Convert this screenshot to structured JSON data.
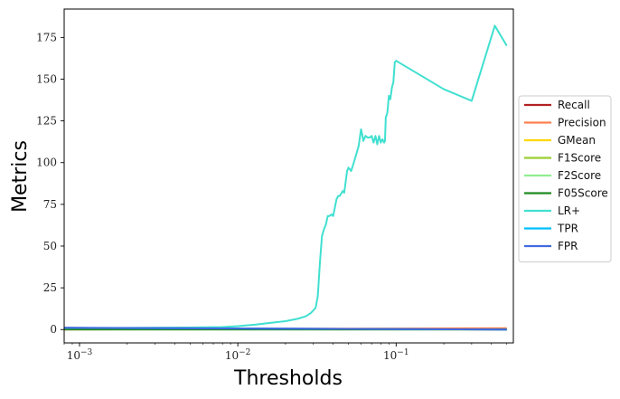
{
  "chart_data": {
    "type": "line",
    "xlabel": "Thresholds",
    "ylabel": "Metrics",
    "xscale": "log",
    "xlim": [
      0.0008,
      0.55
    ],
    "ylim": [
      -8,
      192
    ],
    "grid": false,
    "legend_position": "right-outside",
    "x_ticks": [
      {
        "value": 0.001,
        "base": "10",
        "exp": "−3"
      },
      {
        "value": 0.01,
        "base": "10",
        "exp": "−2"
      },
      {
        "value": 0.1,
        "base": "10",
        "exp": "−1"
      }
    ],
    "y_ticks": [
      0,
      25,
      50,
      75,
      100,
      125,
      150,
      175
    ],
    "series": [
      {
        "name": "Recall",
        "color": "#b22222",
        "x": [
          0.0008,
          0.5
        ],
        "y": [
          0.99,
          0.02
        ]
      },
      {
        "name": "Precision",
        "color": "#ff7f50",
        "x": [
          0.0008,
          0.5
        ],
        "y": [
          0.02,
          0.8
        ]
      },
      {
        "name": "GMean",
        "color": "#ffd700",
        "x": [
          0.0008,
          0.5
        ],
        "y": [
          0.1,
          0.1
        ]
      },
      {
        "name": "F1Score",
        "color": "#9acd32",
        "x": [
          0.0008,
          0.5
        ],
        "y": [
          0.05,
          0.05
        ]
      },
      {
        "name": "F2Score",
        "color": "#90ee90",
        "x": [
          0.0008,
          0.5
        ],
        "y": [
          0.1,
          0.05
        ]
      },
      {
        "name": "F05Score",
        "color": "#228b22",
        "x": [
          0.0008,
          0.5
        ],
        "y": [
          0.03,
          0.05
        ]
      },
      {
        "name": "LR+",
        "color": "#40e0d0",
        "x": [
          0.0008,
          0.002,
          0.005,
          0.008,
          0.01,
          0.013,
          0.016,
          0.02,
          0.024,
          0.027,
          0.029,
          0.031,
          0.032,
          0.033,
          0.034,
          0.035,
          0.036,
          0.037,
          0.038,
          0.039,
          0.04,
          0.042,
          0.043,
          0.044,
          0.046,
          0.047,
          0.049,
          0.05,
          0.052,
          0.054,
          0.056,
          0.058,
          0.06,
          0.061,
          0.062,
          0.064,
          0.066,
          0.068,
          0.07,
          0.072,
          0.074,
          0.076,
          0.078,
          0.08,
          0.082,
          0.084,
          0.085,
          0.086,
          0.088,
          0.09,
          0.092,
          0.094,
          0.096,
          0.098,
          0.1,
          0.2,
          0.3,
          0.42,
          0.5
        ],
        "y": [
          1,
          1,
          1.2,
          1.5,
          2,
          3,
          4,
          5,
          6.5,
          8,
          10,
          13,
          20,
          40,
          56,
          60,
          63,
          68,
          68,
          69,
          68,
          78,
          80,
          80,
          83,
          82,
          95,
          97,
          95,
          100,
          105,
          110,
          120,
          117,
          113,
          116,
          115,
          115,
          116,
          112,
          116,
          111,
          116,
          112,
          114,
          112,
          113,
          127,
          130,
          140,
          138,
          145,
          148,
          160,
          161,
          144,
          137,
          182,
          170
        ]
      },
      {
        "name": "TPR",
        "color": "#00bfff",
        "x": [
          0.0008,
          0.5
        ],
        "y": [
          0.99,
          0.02
        ]
      },
      {
        "name": "FPR",
        "color": "#4169e1",
        "x": [
          0.0008,
          0.5
        ],
        "y": [
          1.1,
          0.01
        ]
      }
    ]
  }
}
